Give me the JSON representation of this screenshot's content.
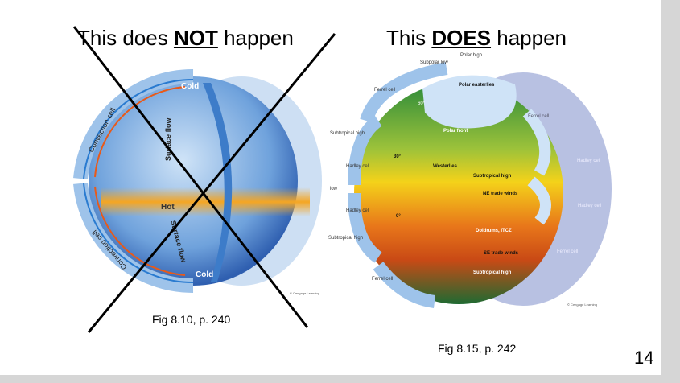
{
  "slide": {
    "left_title": {
      "pre": "This does ",
      "bold": "NOT",
      "post": " happen"
    },
    "right_title": {
      "pre": "This ",
      "bold": "DOES",
      "post": " happen"
    },
    "left_caption": "Fig 8.10, p. 240",
    "right_caption": "Fig 8.15, p. 242",
    "page_number": "14"
  },
  "left_figure": {
    "labels": {
      "cold_top": "Cold",
      "cold_bottom": "Cold",
      "hot": "Hot",
      "surface_flow_top": "Surface flow",
      "surface_flow_bottom": "Surface flow",
      "convection_top": "Convection cell",
      "convection_bottom": "Convection cell",
      "credit": "© Cengage Learning"
    },
    "crossed_out": true
  },
  "right_figure": {
    "labels": {
      "polar_high": "Polar high",
      "subpolar_low": "Subpolar low",
      "polar_easterlies": "Polar easterlies",
      "ferrel_tl": "Ferrel cell",
      "lat60": "60°",
      "polar_front": "Polar front",
      "ferrel_tr": "Ferrel cell",
      "subtropical_high_l": "Subtropical high",
      "lat30": "30°",
      "westerlies": "Westerlies",
      "subtropical_high_n": "Subtropical high",
      "hadley_l1": "Hadley cell",
      "hadley_r1": "Hadley cell",
      "low": "low",
      "ne_trade": "NE trade winds",
      "hadley_l2": "Hadley cell",
      "hadley_r2": "Hadley cell",
      "lat0": "0°",
      "doldrums": "Doldrums, ITCZ",
      "subtropical_high_l2": "Subtropical high",
      "se_trade": "SE trade winds",
      "ferrel_br": "Ferrel cell",
      "subtropical_high_s": "Subtropical high",
      "ferrel_bl": "Ferrel cell",
      "credit": "© Cengage Learning"
    }
  },
  "colors": {
    "cold_blue": "#3a78c8",
    "warm_orange": "#f5a623",
    "cross": "#000000"
  }
}
